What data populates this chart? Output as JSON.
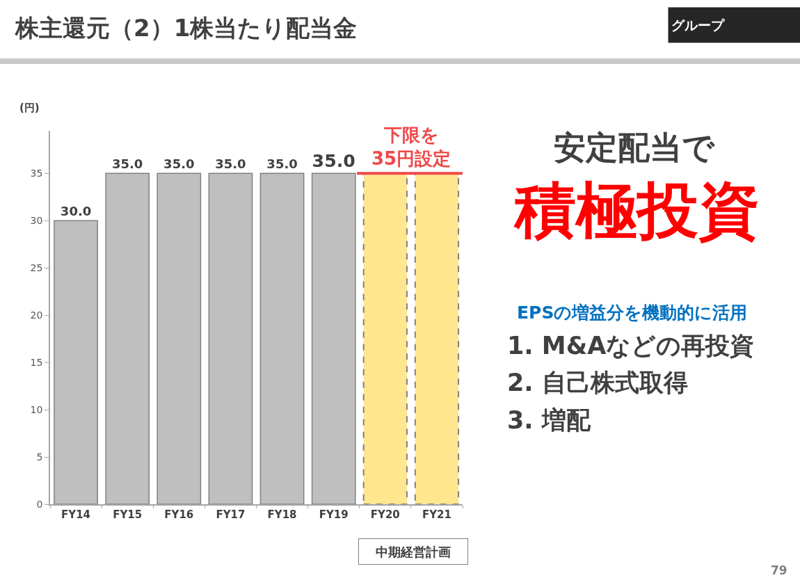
{
  "chart_data": {
    "type": "bar",
    "title": "株主還元（2）1株当たり配当金",
    "ylabel": "(円)",
    "categories": [
      "FY14",
      "FY15",
      "FY16",
      "FY17",
      "FY18",
      "FY19",
      "FY20",
      "FY21"
    ],
    "series": [
      {
        "color": "#bfbfbf",
        "values": [
          30,
          35,
          35,
          35,
          35,
          35,
          null,
          null
        ],
        "value_labels": [
          "30.0",
          "35.0",
          "35.0",
          "35.0",
          "35.0",
          "35.0",
          null,
          null
        ]
      },
      {
        "color": "#ffe68f",
        "values": [
          null,
          null,
          null,
          null,
          null,
          null,
          35,
          35
        ],
        "line_style": "dashed"
      }
    ],
    "ylim": [
      0,
      39.5
    ],
    "yticks": [
      0,
      5,
      10,
      15,
      20,
      25,
      30,
      35
    ],
    "ref_lines": [
      {
        "axis": "y",
        "value": 35,
        "label": "下限を\n35円設定",
        "color": "#f04848"
      }
    ],
    "annotations": [
      "グループ",
      "安定配当で",
      "積極投資",
      "EPSの増益分を機動的に活用",
      "1. M&Aなどの再投資",
      "2. 自己株式取得",
      "3. 増配",
      "中期経営計画",
      "79"
    ]
  }
}
